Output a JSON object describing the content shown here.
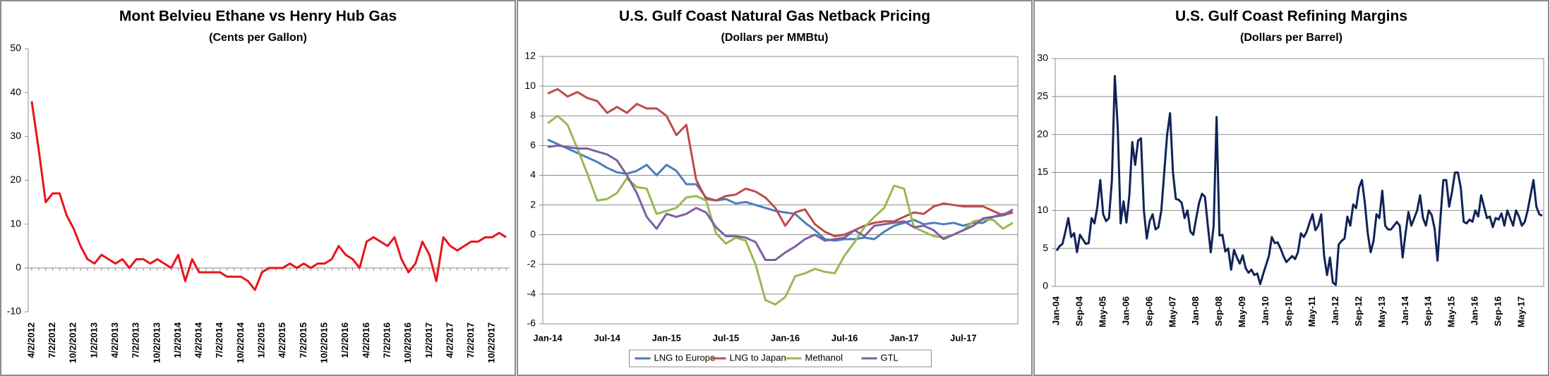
{
  "chart_data": [
    {
      "type": "line",
      "title": "Mont Belvieu Ethane vs Henry Hub Gas",
      "subtitle": "(Cents per Gallon)",
      "categories": [
        "4/2/2012",
        null,
        null,
        "7/2/2012",
        null,
        null,
        "10/2/2012",
        null,
        null,
        "1/2/2013",
        null,
        null,
        "4/2/2013",
        null,
        null,
        "7/2/2013",
        null,
        null,
        "10/2/2013",
        null,
        null,
        "1/2/2014",
        null,
        null,
        "4/2/2014",
        null,
        null,
        "7/2/2014",
        null,
        null,
        "10/2/2014",
        null,
        null,
        "1/2/2015",
        null,
        null,
        "4/2/2015",
        null,
        null,
        "7/2/2015",
        null,
        null,
        "10/2/2015",
        null,
        null,
        "1/2/2016",
        null,
        null,
        "4/2/2016",
        null,
        null,
        "7/2/2016",
        null,
        null,
        "10/2/2016",
        null,
        null,
        "1/2/2017",
        null,
        null,
        "4/2/2017",
        null,
        null,
        "7/2/2017",
        null,
        null,
        "10/2/2017",
        null,
        null
      ],
      "values": [
        38,
        27,
        15,
        17,
        17,
        12,
        9,
        5,
        2,
        1,
        3,
        2,
        1,
        2,
        0,
        2,
        2,
        1,
        2,
        1,
        0,
        3,
        -3,
        2,
        -1,
        -1,
        -1,
        -1,
        -2,
        -2,
        -2,
        -3,
        -5,
        -1,
        0,
        0,
        0,
        1,
        0,
        1,
        0,
        1,
        1,
        2,
        5,
        3,
        2,
        0,
        6,
        7,
        6,
        5,
        7,
        2,
        -1,
        1,
        6,
        3,
        -3,
        7,
        5,
        4,
        5,
        6,
        6,
        7,
        7,
        8,
        7
      ],
      "color": "#e8141b",
      "ylim": [
        -10,
        50
      ],
      "yticks": [
        -10,
        0,
        10,
        20,
        30,
        40,
        50
      ],
      "grid": false
    },
    {
      "type": "line",
      "title": "U.S. Gulf Coast Natural Gas Netback Pricing",
      "subtitle": "(Dollars per MMBtu)",
      "categories": [
        "Jan-14",
        null,
        null,
        null,
        null,
        null,
        "Jul-14",
        null,
        null,
        null,
        null,
        null,
        "Jan-15",
        null,
        null,
        null,
        null,
        null,
        "Jul-15",
        null,
        null,
        null,
        null,
        null,
        "Jan-16",
        null,
        null,
        null,
        null,
        null,
        "Jul-16",
        null,
        null,
        null,
        null,
        null,
        "Jan-17",
        null,
        null,
        null,
        null,
        null,
        "Jul-17",
        null,
        null,
        null,
        null,
        null
      ],
      "series": [
        {
          "name": "LNG to Europe",
          "color": "#4a7ebb",
          "values": [
            6.4,
            6.1,
            5.8,
            5.5,
            5.2,
            4.9,
            4.5,
            4.2,
            4.1,
            4.3,
            4.7,
            4.0,
            4.7,
            4.3,
            3.4,
            3.4,
            2.5,
            2.3,
            2.4,
            2.1,
            2.2,
            2.0,
            1.8,
            1.6,
            1.5,
            1.4,
            0.8,
            0.3,
            -0.3,
            -0.4,
            -0.3,
            -0.3,
            -0.2,
            -0.3,
            0.2,
            0.6,
            0.8,
            1.0,
            0.7,
            0.8,
            0.7,
            0.8,
            0.6,
            0.8,
            0.8,
            1.2,
            1.4,
            1.5
          ]
        },
        {
          "name": "LNG to Japan",
          "color": "#be4b48",
          "values": [
            9.5,
            9.8,
            9.3,
            9.6,
            9.2,
            9.0,
            8.2,
            8.6,
            8.2,
            8.8,
            8.5,
            8.5,
            8.0,
            6.7,
            7.4,
            3.7,
            2.4,
            2.3,
            2.6,
            2.7,
            3.1,
            2.9,
            2.5,
            1.8,
            0.6,
            1.5,
            1.7,
            0.7,
            0.2,
            -0.1,
            0.0,
            0.3,
            0.6,
            0.8,
            0.9,
            0.9,
            1.2,
            1.5,
            1.4,
            1.9,
            2.1,
            2.0,
            1.9,
            1.9,
            1.9,
            1.6,
            1.3,
            1.5
          ]
        },
        {
          "name": "Methanol",
          "color": "#98b954",
          "values": [
            7.5,
            8.0,
            7.4,
            5.8,
            4.1,
            2.3,
            2.4,
            2.8,
            3.8,
            3.2,
            3.1,
            1.4,
            1.6,
            1.8,
            2.5,
            2.6,
            2.3,
            0.1,
            -0.6,
            -0.2,
            -0.4,
            -2.0,
            -4.4,
            -4.7,
            -4.2,
            -2.8,
            -2.6,
            -2.3,
            -2.5,
            -2.6,
            -1.4,
            -0.5,
            0.5,
            1.2,
            1.8,
            3.3,
            3.1,
            0.5,
            0.2,
            -0.1,
            -0.2,
            0.0,
            0.3,
            0.9,
            1.0,
            1.0,
            0.4,
            0.8
          ]
        },
        {
          "name": "GTL",
          "color": "#7d60a0",
          "values": [
            5.9,
            6.0,
            5.9,
            5.8,
            5.8,
            5.6,
            5.4,
            5.0,
            4.0,
            2.8,
            1.2,
            0.4,
            1.4,
            1.2,
            1.4,
            1.8,
            1.5,
            0.5,
            -0.1,
            -0.1,
            -0.2,
            -0.5,
            -1.7,
            -1.7,
            -1.2,
            -0.8,
            -0.3,
            0.0,
            -0.4,
            -0.3,
            -0.2,
            0.3,
            -0.1,
            0.6,
            0.7,
            0.8,
            0.9,
            0.5,
            0.6,
            0.3,
            -0.3,
            0.0,
            0.3,
            0.6,
            1.1,
            1.2,
            1.3,
            1.7
          ]
        }
      ],
      "ylim": [
        -6,
        12
      ],
      "yticks": [
        -6,
        -4,
        -2,
        0,
        2,
        4,
        6,
        8,
        10,
        12
      ],
      "grid": true,
      "legend": "bottom"
    },
    {
      "type": "line",
      "title": "U.S. Gulf Coast Refining Margins",
      "subtitle": "(Dollars per Barrel)",
      "categories": [
        "Jan-04",
        null,
        null,
        null,
        null,
        null,
        null,
        null,
        "Sep-04",
        null,
        null,
        null,
        null,
        null,
        null,
        null,
        "May-05",
        null,
        null,
        null,
        null,
        null,
        null,
        null,
        "Jan-06",
        null,
        null,
        null,
        null,
        null,
        null,
        null,
        "Sep-06",
        null,
        null,
        null,
        null,
        null,
        null,
        null,
        "May-07",
        null,
        null,
        null,
        null,
        null,
        null,
        null,
        "Jan-08",
        null,
        null,
        null,
        null,
        null,
        null,
        null,
        "Sep-08",
        null,
        null,
        null,
        null,
        null,
        null,
        null,
        "May-09",
        null,
        null,
        null,
        null,
        null,
        null,
        null,
        "Jan-10",
        null,
        null,
        null,
        null,
        null,
        null,
        null,
        "Sep-10",
        null,
        null,
        null,
        null,
        null,
        null,
        null,
        "May-11",
        null,
        null,
        null,
        null,
        null,
        null,
        null,
        "Jan-12",
        null,
        null,
        null,
        null,
        null,
        null,
        null,
        "Sep-12",
        null,
        null,
        null,
        null,
        null,
        null,
        null,
        "May-13",
        null,
        null,
        null,
        null,
        null,
        null,
        null,
        "Jan-14",
        null,
        null,
        null,
        null,
        null,
        null,
        null,
        "Sep-14",
        null,
        null,
        null,
        null,
        null,
        null,
        null,
        "May-15",
        null,
        null,
        null,
        null,
        null,
        null,
        null,
        "Jan-16",
        null,
        null,
        null,
        null,
        null,
        null,
        null,
        "Sep-16",
        null,
        null,
        null,
        null,
        null,
        null,
        null,
        "May-17",
        null,
        null,
        null,
        null,
        null,
        null,
        null
      ],
      "values": [
        4.7,
        5.3,
        5.6,
        7.2,
        9.0,
        6.5,
        7.0,
        4.5,
        6.8,
        6.2,
        5.6,
        5.7,
        9.0,
        8.3,
        10.5,
        14.0,
        9.5,
        8.6,
        9.0,
        14.0,
        27.7,
        21.0,
        8.3,
        11.2,
        8.4,
        12.0,
        19.0,
        16.0,
        19.2,
        19.5,
        10.0,
        6.3,
        8.6,
        9.5,
        7.5,
        7.8,
        10.0,
        15.0,
        20.0,
        22.8,
        15.0,
        11.5,
        11.4,
        11.0,
        9.0,
        10.0,
        7.2,
        6.8,
        9.0,
        11.0,
        12.2,
        11.8,
        8.0,
        4.5,
        8.0,
        22.3,
        6.7,
        6.8,
        4.6,
        5.0,
        2.2,
        4.8,
        3.8,
        3.0,
        4.1,
        2.4,
        1.8,
        2.2,
        1.5,
        1.7,
        0.3,
        1.6,
        2.8,
        4.0,
        6.5,
        5.7,
        5.8,
        5.0,
        4.0,
        3.2,
        3.6,
        4.0,
        3.6,
        4.5,
        7.0,
        6.5,
        7.2,
        8.4,
        9.5,
        7.4,
        8.0,
        9.5,
        4.0,
        1.5,
        3.8,
        0.5,
        0.2,
        5.5,
        6.0,
        6.3,
        9.2,
        8.0,
        10.8,
        10.3,
        13.0,
        14.0,
        11.0,
        7.0,
        4.5,
        6.0,
        9.5,
        9.0,
        12.6,
        8.0,
        7.5,
        7.5,
        8.0,
        8.5,
        8.0,
        3.8,
        7.0,
        9.8,
        8.0,
        9.0,
        10.0,
        12.0,
        9.0,
        8.0,
        10.0,
        9.4,
        7.6,
        3.4,
        9.0,
        14.0,
        14.0,
        10.5,
        12.5,
        15.0,
        15.0,
        13.0,
        8.5,
        8.3,
        8.8,
        8.5,
        10.0,
        9.2,
        12.0,
        10.5,
        9.0,
        9.2,
        7.8,
        9.0,
        8.8,
        9.6,
        8.0,
        10.0,
        9.0,
        8.0,
        10.0,
        9.2,
        8.0,
        8.5,
        10.0,
        12.0,
        14.0,
        10.5,
        9.5,
        9.3
      ],
      "color": "#0f2356",
      "ylim": [
        0,
        30
      ],
      "yticks": [
        0,
        5,
        10,
        15,
        20,
        25,
        30
      ],
      "grid": true
    }
  ]
}
